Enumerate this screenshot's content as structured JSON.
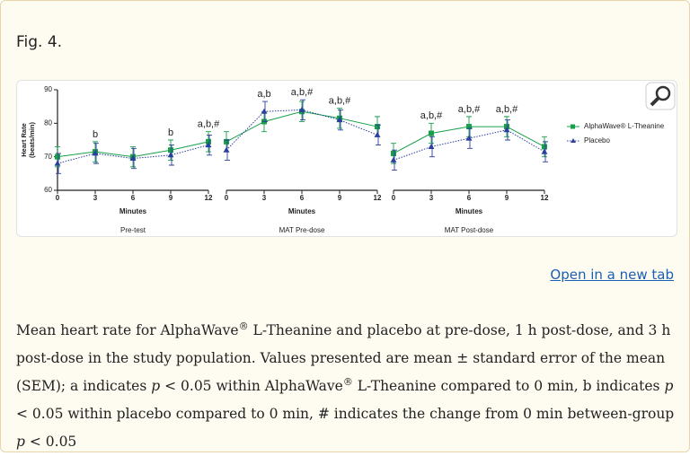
{
  "figure_label": "Fig. 4.",
  "chart_data": {
    "type": "line",
    "ylabel": [
      "Heart Rate",
      "(beats/min)"
    ],
    "ylim": [
      60,
      90
    ],
    "yticks": [
      60,
      70,
      80,
      90
    ],
    "series": [
      {
        "name": "AlphaWave® L-Theanine",
        "color": "#16a04a",
        "marker": "square",
        "line_style": "solid"
      },
      {
        "name": "Placebo",
        "color": "#2b3f9c",
        "marker": "triangle",
        "line_style": "dotted"
      }
    ],
    "panels": [
      {
        "title": "Pre-test",
        "xlabel": "Minutes",
        "x": [
          0,
          3,
          6,
          9,
          12
        ],
        "xlim": [
          0,
          12
        ],
        "xticks": [
          0,
          3,
          6,
          9,
          12
        ],
        "series": [
          {
            "values": [
              70,
              71.5,
              70,
              72,
              74.5
            ],
            "errors": [
              3,
              3,
              3,
              3,
              3
            ]
          },
          {
            "values": [
              68,
              71,
              69.5,
              70.5,
              73.5
            ],
            "errors": [
              3,
              3,
              3,
              3,
              3
            ]
          }
        ],
        "annotations": [
          {
            "x": 3,
            "label": "b"
          },
          {
            "x": 9,
            "label": "b"
          },
          {
            "x": 12,
            "label": "a,b,#"
          }
        ]
      },
      {
        "title": "MAT Pre-dose",
        "xlabel": "Minutes",
        "x": [
          0,
          3,
          6,
          9,
          12
        ],
        "xlim": [
          0,
          12
        ],
        "xticks": [
          0,
          3,
          6,
          9,
          12
        ],
        "series": [
          {
            "values": [
              74.5,
              80.5,
              83.5,
              81.5,
              79
            ],
            "errors": [
              3,
              3,
              3,
              3,
              3
            ]
          },
          {
            "values": [
              72,
              83.5,
              84,
              81,
              76.5
            ],
            "errors": [
              3,
              3,
              3,
              3,
              3
            ]
          }
        ],
        "annotations": [
          {
            "x": 3,
            "label": "a,b"
          },
          {
            "x": 6,
            "label": "a,b,#"
          },
          {
            "x": 9,
            "label": "a,b,#"
          }
        ]
      },
      {
        "title": "MAT Post-dose",
        "xlabel": "Minutes",
        "x": [
          0,
          3,
          6,
          9,
          12
        ],
        "xlim": [
          0,
          12
        ],
        "xticks": [
          0,
          3,
          6,
          9,
          12
        ],
        "series": [
          {
            "values": [
              71,
              77,
              79,
              79,
              73
            ],
            "errors": [
              3,
              3,
              3,
              3,
              3
            ]
          },
          {
            "values": [
              69,
              73,
              75.5,
              78,
              71.5
            ],
            "errors": [
              3,
              3,
              3,
              3,
              3
            ]
          }
        ],
        "annotations": [
          {
            "x": 3,
            "label": "a,b,#"
          },
          {
            "x": 6,
            "label": "a,b,#"
          },
          {
            "x": 9,
            "label": "a,b,#"
          }
        ]
      }
    ]
  },
  "link": "Open in a new tab",
  "caption": [
    "Mean heart rate for AlphaWave",
    "®",
    " L-Theanine and placebo at pre-dose, 1 h post-dose, and 3  h post-dose in the study population. Values presented are mean ± standard error of the mean (SEM); a indicates ",
    "p",
    " < 0.05 within AlphaWave",
    "®",
    " L-Theanine compared to 0  min, b indicates ",
    "p",
    " < 0.05 within placebo compared to 0  min, # indicates the change from 0  min between-group ",
    "p",
    " < 0.05"
  ]
}
